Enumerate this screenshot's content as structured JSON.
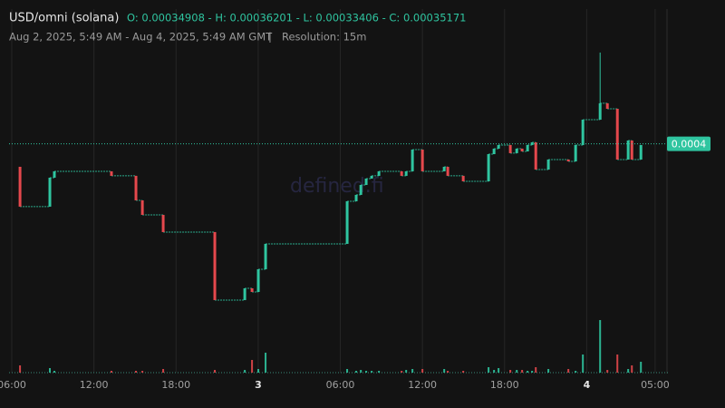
{
  "chart_data": {
    "type": "candlestick",
    "title": "USD/omni (solana)",
    "ohlc_summary": "O: 0.00034908 - H: 0.00036201 - L: 0.00033406 - C: 0.00035171",
    "subtitle": "Aug 2, 2025, 5:49 AM - Aug 4, 2025, 5:49 AM GMT",
    "resolution": "Resolution: 15m",
    "watermark": "defined.fi",
    "up_color": "#2fc5a0",
    "down_color": "#e5484d",
    "xlim": [
      5.8,
      53.8
    ],
    "ylim": [
      0.00032597,
      0.00036692
    ],
    "xticks": [
      {
        "value": 6,
        "label": "06:00"
      },
      {
        "value": 12,
        "label": "12:00"
      },
      {
        "value": 18,
        "label": "18:00"
      },
      {
        "value": 24,
        "label": "3"
      },
      {
        "value": 30,
        "label": "06:00"
      },
      {
        "value": 36,
        "label": "12:00"
      },
      {
        "value": 42,
        "label": "18:00"
      },
      {
        "value": 48,
        "label": "4"
      },
      {
        "value": 53,
        "label": "05:00"
      }
    ],
    "last_price": {
      "value": 0.00035171,
      "label": "0.0004"
    },
    "x": [
      6.6,
      8.78,
      9.11,
      13.28,
      15.07,
      15.54,
      17.06,
      20.83,
      23.02,
      23.55,
      24.01,
      24.54,
      30.5,
      31.16,
      31.5,
      31.89,
      32.29,
      32.82,
      34.48,
      34.81,
      35.27,
      36.0,
      37.59,
      37.85,
      38.98,
      40.83,
      41.23,
      41.56,
      42.42,
      42.89,
      43.28,
      43.68,
      44.01,
      44.28,
      45.2,
      46.66,
      47.19,
      47.72,
      48.98,
      49.51,
      50.24,
      51.03,
      51.3,
      51.96
    ],
    "open": [
      0.00034911,
      0.00034461,
      0.00034788,
      0.0003486,
      0.00034809,
      0.00034532,
      0.00034368,
      0.00034174,
      0.00033406,
      0.00033539,
      0.00033498,
      0.00033754,
      0.00034041,
      0.00034522,
      0.00034594,
      0.00034706,
      0.00034778,
      0.00034809,
      0.0003486,
      0.00034809,
      0.0003486,
      0.00035105,
      0.0003486,
      0.00034911,
      0.00034809,
      0.00034747,
      0.00035054,
      0.00035116,
      0.00035157,
      0.00035065,
      0.00035116,
      0.00035085,
      0.00035157,
      0.00035187,
      0.0003488,
      0.00034993,
      0.00034972,
      0.00035157,
      0.00035443,
      0.00035628,
      0.00035566,
      0.00034993,
      0.00035208,
      0.00034993
    ],
    "close": [
      0.00034461,
      0.00034788,
      0.0003486,
      0.00034809,
      0.00034532,
      0.00034368,
      0.00034174,
      0.00033406,
      0.00033539,
      0.00033498,
      0.00033754,
      0.00034041,
      0.00034522,
      0.00034594,
      0.00034706,
      0.00034778,
      0.00034809,
      0.0003486,
      0.00034809,
      0.0003486,
      0.00035105,
      0.0003486,
      0.00034911,
      0.00034809,
      0.00034747,
      0.00035054,
      0.00035116,
      0.00035157,
      0.00035065,
      0.00035116,
      0.00035085,
      0.00035157,
      0.00035187,
      0.0003488,
      0.00034993,
      0.00034972,
      0.00035157,
      0.00035443,
      0.00035628,
      0.00035566,
      0.00034993,
      0.00035208,
      0.00034993,
      0.00035157
    ],
    "high": [
      0.00034911,
      0.00034788,
      0.0003486,
      0.0003486,
      0.00034809,
      0.00034532,
      0.00034368,
      0.00034174,
      0.00033539,
      0.00033539,
      0.00033754,
      0.00034041,
      0.00034522,
      0.00034594,
      0.00034706,
      0.00034778,
      0.00034809,
      0.0003486,
      0.0003486,
      0.0003486,
      0.00035105,
      0.00035105,
      0.00034911,
      0.00034911,
      0.00034809,
      0.00035054,
      0.00035116,
      0.00035157,
      0.00035157,
      0.00035116,
      0.00035116,
      0.00035157,
      0.00035187,
      0.00035187,
      0.00034993,
      0.00034993,
      0.00035157,
      0.00035443,
      0.00036201,
      0.00035628,
      0.00035566,
      0.00035208,
      0.00035208,
      0.00035157
    ],
    "low": [
      0.00034461,
      0.00034461,
      0.00034788,
      0.00034809,
      0.00034532,
      0.00034368,
      0.00034174,
      0.00033406,
      0.00033406,
      0.00033498,
      0.00033498,
      0.00033754,
      0.00034041,
      0.00034522,
      0.00034594,
      0.00034706,
      0.00034778,
      0.00034809,
      0.00034809,
      0.00034809,
      0.0003486,
      0.0003486,
      0.0003486,
      0.00034809,
      0.00034747,
      0.00034747,
      0.00035054,
      0.00035116,
      0.00035065,
      0.00035065,
      0.00035085,
      0.00035085,
      0.00035157,
      0.0003488,
      0.0003488,
      0.00034972,
      0.00034972,
      0.00035157,
      0.00035443,
      0.00035566,
      0.00034993,
      0.00034993,
      0.00034993,
      0.00034993
    ],
    "volume": [
      8,
      5,
      2,
      2,
      2,
      2,
      4,
      3,
      3,
      14,
      4,
      22,
      4,
      2,
      3,
      2,
      2,
      2,
      2,
      3,
      4,
      4,
      4,
      2,
      2,
      6,
      3,
      5,
      3,
      3,
      3,
      2,
      2,
      6,
      4,
      4,
      2,
      20,
      58,
      3,
      20,
      4,
      8,
      12
    ],
    "volume_lim": [
      0,
      60
    ]
  }
}
